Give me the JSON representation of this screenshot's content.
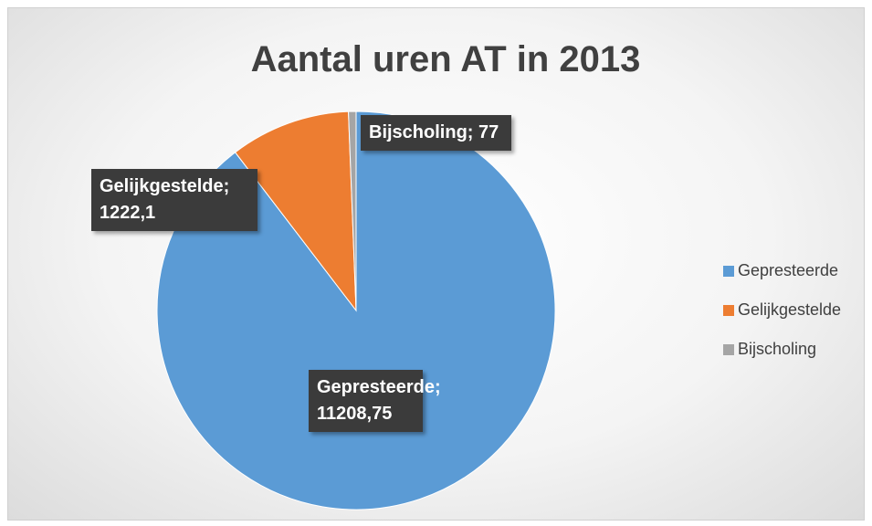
{
  "chart_data": {
    "type": "pie",
    "title": "Aantal uren AT in 2013",
    "categories": [
      "Gepresteerde",
      "Gelijkgestelde",
      "Bijscholing"
    ],
    "values": [
      11208.75,
      1222.1,
      77
    ],
    "value_labels": [
      "Gepresteerde; 11208,75",
      "Gelijkgestelde; 1222,1",
      "Bijscholing; 77"
    ],
    "colors": [
      "#5b9bd5",
      "#ed7d31",
      "#a5a5a5"
    ],
    "legend": "right"
  }
}
